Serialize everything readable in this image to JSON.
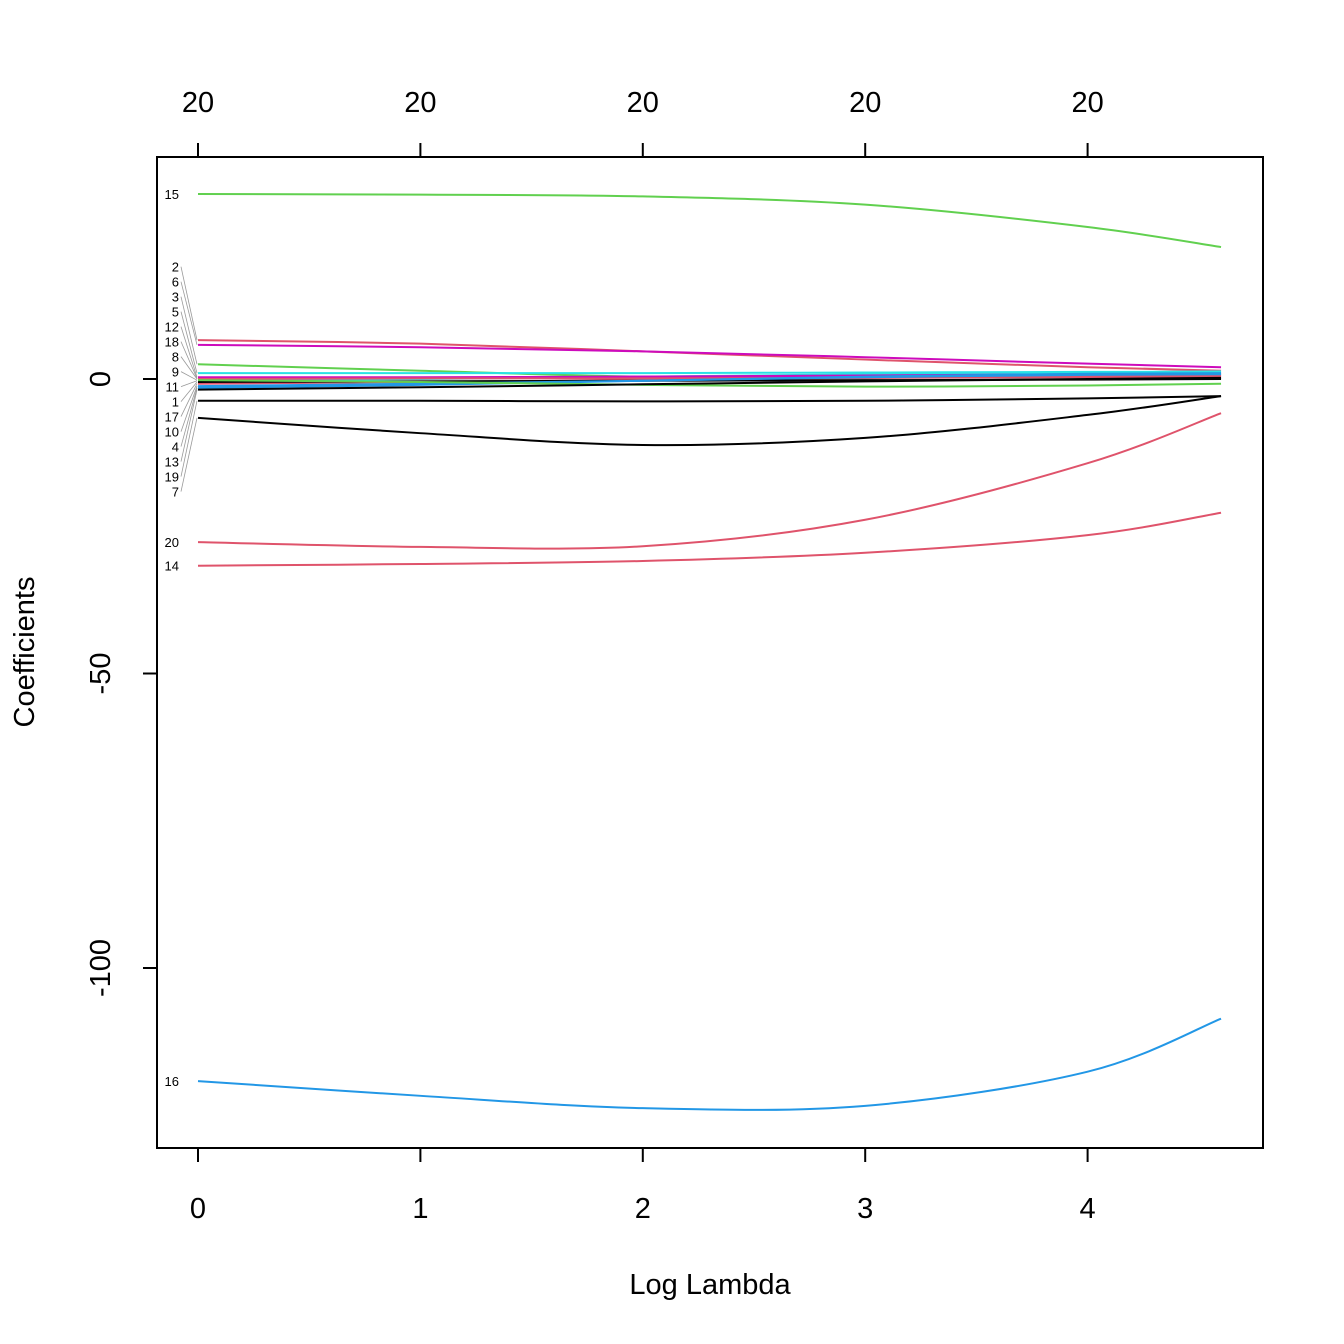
{
  "chart_data": {
    "type": "line",
    "title": "",
    "xlabel": "Log Lambda",
    "ylabel": "Coefficients",
    "xlim": [
      0,
      4.6
    ],
    "ylim": [
      -130,
      38
    ],
    "x_ticks": [
      0,
      1,
      2,
      3,
      4
    ],
    "y_ticks": [
      0,
      -50,
      -100
    ],
    "top_axis_ticks": [
      0,
      1,
      2,
      3,
      4
    ],
    "top_axis_labels": [
      "20",
      "20",
      "20",
      "20",
      "20"
    ],
    "grid": false,
    "legend": "none",
    "x": [
      0,
      1,
      2,
      3,
      4,
      4.6
    ],
    "series": [
      {
        "name": "15",
        "color": "#61D04F",
        "values": [
          31.4,
          31.3,
          31.0,
          29.6,
          25.8,
          22.4
        ]
      },
      {
        "name": "2",
        "color": "#DF536B",
        "values": [
          6.6,
          6.0,
          4.7,
          3.3,
          2.0,
          1.4
        ]
      },
      {
        "name": "6",
        "color": "#CD0BBC",
        "values": [
          5.8,
          5.4,
          4.7,
          3.7,
          2.6,
          2.0
        ]
      },
      {
        "name": "3",
        "color": "#61D04F",
        "values": [
          2.5,
          1.4,
          0.4,
          0.3,
          0.6,
          0.8
        ]
      },
      {
        "name": "5",
        "color": "#28E2E5",
        "values": [
          1.0,
          1.0,
          1.0,
          1.1,
          1.2,
          1.2
        ]
      },
      {
        "name": "11",
        "color": "#28E2E5",
        "values": [
          -0.3,
          0.0,
          0.4,
          0.8,
          1.1,
          1.3
        ]
      },
      {
        "name": "18",
        "color": "#CD0BBC",
        "values": [
          0.1,
          0.2,
          0.4,
          0.6,
          0.8,
          0.9
        ]
      },
      {
        "name": "12",
        "color": "#CD0BBC",
        "values": [
          0.3,
          0.3,
          0.4,
          0.4,
          0.5,
          0.5
        ]
      },
      {
        "name": "8",
        "color": "#DF536B",
        "values": [
          0.0,
          0.1,
          0.1,
          0.2,
          0.3,
          0.3
        ]
      },
      {
        "name": "17",
        "color": "#DF536B",
        "values": [
          -0.8,
          -0.5,
          -0.2,
          0.2,
          0.5,
          0.6
        ]
      },
      {
        "name": "1",
        "color": "#000000",
        "values": [
          -0.5,
          -0.4,
          -0.3,
          -0.2,
          -0.1,
          0.0
        ]
      },
      {
        "name": "10",
        "color": "#2297E6",
        "values": [
          -1.2,
          -0.8,
          -0.3,
          0.3,
          0.7,
          0.8
        ]
      },
      {
        "name": "4",
        "color": "#2297E6",
        "values": [
          -1.5,
          -1.0,
          -0.3,
          0.4,
          0.9,
          1.0
        ]
      },
      {
        "name": "9",
        "color": "#61D04F",
        "values": [
          -0.2,
          -0.5,
          -1.0,
          -1.3,
          -1.1,
          -0.8
        ]
      },
      {
        "name": "13",
        "color": "#000000",
        "values": [
          -1.8,
          -1.4,
          -0.9,
          -0.4,
          0.0,
          0.2
        ]
      },
      {
        "name": "19",
        "color": "#000000",
        "values": [
          -3.7,
          -3.7,
          -3.8,
          -3.7,
          -3.3,
          -2.9
        ]
      },
      {
        "name": "7",
        "color": "#000000",
        "values": [
          -6.6,
          -9.2,
          -11.2,
          -10.0,
          -6.1,
          -2.9
        ]
      },
      {
        "name": "20",
        "color": "#DF536B",
        "values": [
          -27.7,
          -28.5,
          -28.4,
          -23.9,
          -14.3,
          -5.8
        ]
      },
      {
        "name": "14",
        "color": "#DF536B",
        "values": [
          -31.7,
          -31.4,
          -30.9,
          -29.5,
          -26.5,
          -22.7
        ]
      },
      {
        "name": "16",
        "color": "#2297E6",
        "values": [
          -119.2,
          -121.7,
          -123.8,
          -123.4,
          -117.6,
          -108.6
        ]
      }
    ]
  }
}
